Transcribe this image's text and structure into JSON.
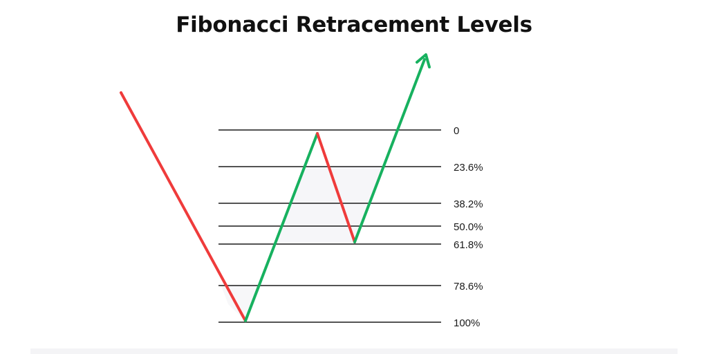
{
  "title": "Fibonacci Retracement Levels",
  "levels": [
    "0",
    "23.6%",
    "38.2%",
    "50.0%",
    "61.8%",
    "78.6%",
    "100%"
  ],
  "colors": {
    "downtrend": "#ef3b3b",
    "uptrend": "#17b15f",
    "level_line": "#1a1a1a",
    "zone_fill": "#f6f6f9",
    "text": "#111111"
  },
  "icons": {
    "trend_arrow": "arrow-up-right-icon"
  }
}
